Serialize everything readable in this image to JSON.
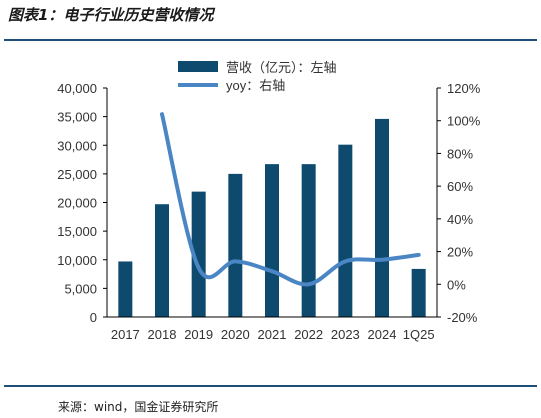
{
  "figure": {
    "title": "图表1：电子行业历史营收情况",
    "source": "来源：wind，国金证券研究所"
  },
  "colors": {
    "bar": "#0d4a6e",
    "line": "#4a86c4",
    "rule": "#1f4e79",
    "text": "#333333"
  },
  "chart_data": {
    "type": "bar",
    "categories": [
      "2017",
      "2018",
      "2019",
      "2020",
      "2021",
      "2022",
      "2023",
      "2024",
      "1Q25"
    ],
    "series": [
      {
        "name": "营收（亿元）：左轴",
        "type": "bar",
        "axis": "left",
        "values": [
          9700,
          19700,
          21900,
          25000,
          26700,
          26700,
          30100,
          34600,
          8400
        ]
      },
      {
        "name": "yoy：右轴",
        "type": "line",
        "axis": "right",
        "values": [
          null,
          104,
          10,
          14,
          8,
          0,
          14,
          15,
          18
        ]
      }
    ],
    "y_left": {
      "range": [
        0,
        40000
      ],
      "ticks": [
        "0",
        "5,000",
        "10,000",
        "15,000",
        "20,000",
        "25,000",
        "30,000",
        "35,000",
        "40,000"
      ]
    },
    "y_right": {
      "range": [
        -20,
        120
      ],
      "ticks": [
        "-20%",
        "0%",
        "20%",
        "40%",
        "60%",
        "80%",
        "100%",
        "120%"
      ]
    },
    "legend_position": "top-center",
    "grid": false
  }
}
